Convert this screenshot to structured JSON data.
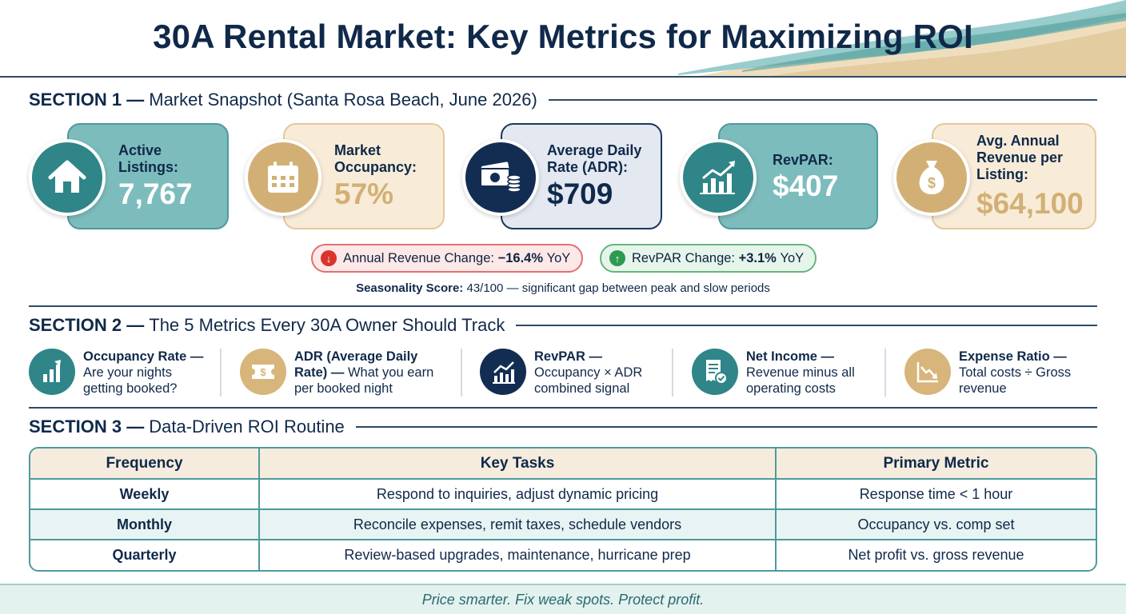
{
  "title": "30A Rental Market: Key Metrics for Maximizing ROI",
  "section1": {
    "number": "SECTION 1 —",
    "heading": "Market Snapshot (Santa Rosa Beach, June 2026)",
    "kpis": [
      {
        "label_lines": [
          "Active",
          "Listings:"
        ],
        "value": "7,767",
        "icon": "house-icon",
        "theme": "teal"
      },
      {
        "label_lines": [
          "Market",
          "Occupancy:"
        ],
        "value": "57%",
        "icon": "calendar-icon",
        "theme": "sand"
      },
      {
        "label_lines": [
          "Average Daily",
          "Rate (ADR):"
        ],
        "value": "$709",
        "icon": "cash-icon",
        "theme": "navy"
      },
      {
        "label_lines": [
          "RevPAR:"
        ],
        "value": "$407",
        "icon": "growth-chart-icon",
        "theme": "teal"
      },
      {
        "label_lines": [
          "Avg. Annual",
          "Revenue per",
          "Listing:"
        ],
        "value": "$64,100",
        "icon": "money-bag-icon",
        "theme": "sand"
      }
    ],
    "pills": {
      "revenue_label": "Annual Revenue Change:",
      "revenue_value": "−16.4%",
      "revenue_suffix": "YoY",
      "revpar_label": "RevPAR Change:",
      "revpar_value": "+3.1%",
      "revpar_suffix": "YoY",
      "down_arrow": "↓",
      "up_arrow": "↑"
    },
    "seasonality_label": "Seasonality Score:",
    "seasonality_text": "43/100 — significant gap between peak and slow periods"
  },
  "section2": {
    "number": "SECTION 2 —",
    "heading": "The 5 Metrics Every 30A Owner Should Track",
    "metrics": [
      {
        "title": "Occupancy Rate —",
        "lines": [
          "Are your nights",
          "getting booked?"
        ],
        "icon": "bar-growth-icon"
      },
      {
        "title": "ADR (Average Daily",
        "title2": "Rate) —",
        "lines": [
          "What you earn",
          "per booked night"
        ],
        "icon": "ticket-dollar-icon"
      },
      {
        "title": "RevPAR —",
        "lines": [
          "Occupancy × ADR",
          "combined signal"
        ],
        "icon": "line-chart-icon"
      },
      {
        "title": "Net Income —",
        "lines": [
          "Revenue minus all",
          "operating costs"
        ],
        "icon": "receipt-check-icon"
      },
      {
        "title": "Expense Ratio —",
        "lines": [
          "Total costs ÷ Gross",
          "revenue"
        ],
        "icon": "decline-chart-icon"
      }
    ]
  },
  "section3": {
    "number": "SECTION 3 —",
    "heading": "Data-Driven ROI Routine",
    "columns": [
      "Frequency",
      "Key Tasks",
      "Primary Metric"
    ],
    "rows": [
      [
        "Weekly",
        "Respond to inquiries, adjust dynamic pricing",
        "Response time < 1 hour"
      ],
      [
        "Monthly",
        "Reconcile expenses, remit taxes, schedule vendors",
        "Occupancy vs. comp set"
      ],
      [
        "Quarterly",
        "Review-based upgrades, maintenance, hurricane prep",
        "Net profit vs. gross revenue"
      ]
    ]
  },
  "footer": "Price smarter. Fix weak spots. Protect profit."
}
